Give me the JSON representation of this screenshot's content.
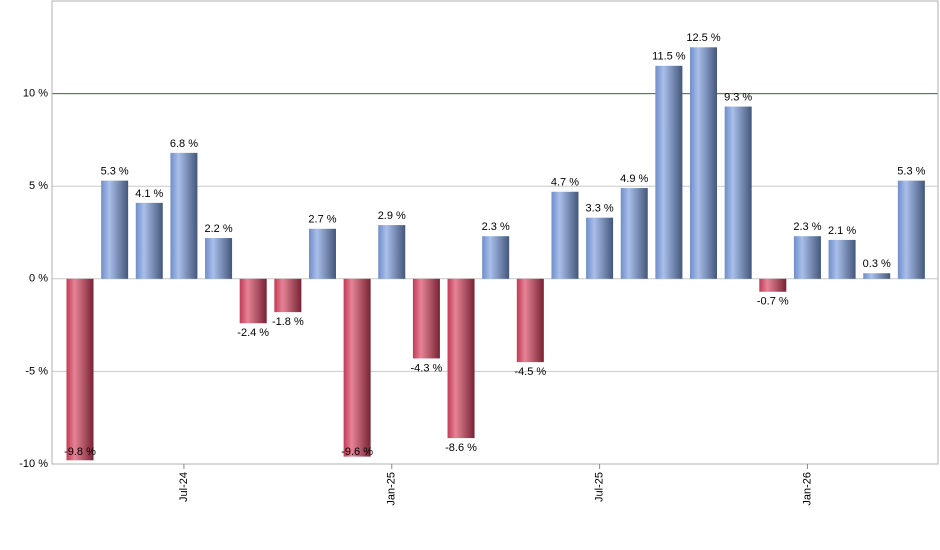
{
  "chart_data": {
    "type": "bar",
    "categories": [
      null,
      null,
      null,
      "Jul-24",
      null,
      null,
      null,
      null,
      null,
      "Jan-25",
      null,
      null,
      null,
      null,
      null,
      "Jul-25",
      null,
      null,
      null,
      null,
      null,
      "Jan-26",
      null,
      null,
      null
    ],
    "values": [
      -9.8,
      5.3,
      4.1,
      6.8,
      2.2,
      -2.4,
      -1.8,
      2.7,
      -9.6,
      2.9,
      -4.3,
      -8.6,
      2.3,
      -4.5,
      4.7,
      3.3,
      4.9,
      11.5,
      12.5,
      9.3,
      -0.7,
      2.3,
      2.1,
      0.3,
      5.3
    ],
    "value_labels": [
      "-9.8 %",
      "5.3 %",
      "4.1 %",
      "6.8 %",
      "2.2 %",
      "-2.4 %",
      "-1.8 %",
      "2.7 %",
      "-9.6 %",
      "2.9 %",
      "-4.3 %",
      "-8.6 %",
      "2.3 %",
      "-4.5 %",
      "4.7 %",
      "3.3 %",
      "4.9 %",
      "11.5 %",
      "12.5 %",
      "9.3 %",
      "-0.7 %",
      "2.3 %",
      "2.1 %",
      "0.3 %",
      "5.3 %"
    ],
    "color": "#7b9ddf",
    "negative_color": "#d8405e",
    "ylim": [
      -10,
      15
    ],
    "yticks": [
      {
        "value": -10,
        "label": "-10 %"
      },
      {
        "value": -5,
        "label": "-5 %"
      },
      {
        "value": 0,
        "label": "0 %"
      },
      {
        "value": 5,
        "label": "5 %"
      },
      {
        "value": 10,
        "label": "10 %"
      }
    ],
    "grid": true,
    "reference_line": 10,
    "reference_color": "#2e7d32"
  }
}
